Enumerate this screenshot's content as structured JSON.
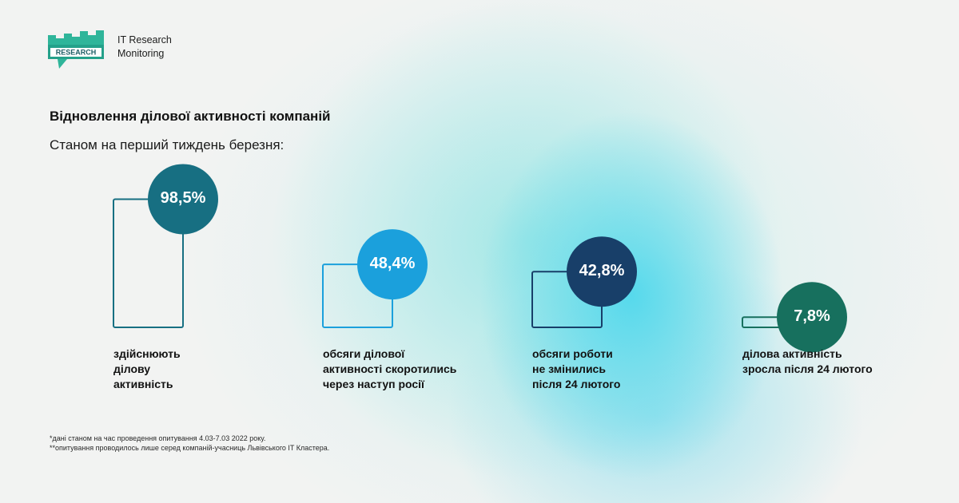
{
  "brand": {
    "logo_badge": "RESEARCH",
    "name_line1": "IT Research",
    "name_line2": "Monitoring"
  },
  "title": "Відновлення ділової активності компаній",
  "subtitle": "Станом на перший тиждень березня:",
  "chart_data": {
    "type": "bar",
    "title": "Відновлення ділової активності компаній",
    "subtitle": "Станом на перший тиждень березня:",
    "unit": "%",
    "ylim": [
      0,
      100
    ],
    "categories": [
      "здійснюють ділову активність",
      "обсяги ділової активності скоротились через наступ росії",
      "обсяги роботи не змінились після 24 лютого",
      "ділова активність зросла після 24 лютого"
    ],
    "values": [
      98.5,
      48.4,
      42.8,
      7.8
    ],
    "value_labels": [
      "98,5%",
      "48,4%",
      "42,8%",
      "7,8%"
    ],
    "label_lines": [
      [
        "здійснюють",
        "ділову",
        "активність"
      ],
      [
        "обсяги ділової",
        "активності скоротились",
        "через наступ росії"
      ],
      [
        "обсяги роботи",
        "не змінились",
        "після 24 лютого"
      ],
      [
        "ділова активність",
        "зросла після 24 лютого"
      ]
    ],
    "colors": [
      "#176f82",
      "#1ba0dc",
      "#183f69",
      "#17705e"
    ],
    "grid": false,
    "legend": "none"
  },
  "footnotes": [
    "*дані станом на час проведення опитування 4.03-7.03 2022 року.",
    "**опитування проводилось лише серед компаній-учасниць Львівського IT Кластера."
  ]
}
